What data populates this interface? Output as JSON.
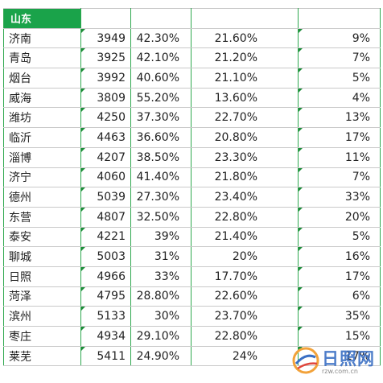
{
  "sheet": {
    "header": "山东",
    "rows": [
      {
        "city": "济南",
        "value": "3949",
        "pct1": "42.30%",
        "pct2": "21.60%",
        "pct3": "9%"
      },
      {
        "city": "青岛",
        "value": "3925",
        "pct1": "42.10%",
        "pct2": "21.20%",
        "pct3": "7%"
      },
      {
        "city": "烟台",
        "value": "3992",
        "pct1": "40.60%",
        "pct2": "21.10%",
        "pct3": "5%"
      },
      {
        "city": "威海",
        "value": "3809",
        "pct1": "55.20%",
        "pct2": "13.60%",
        "pct3": "4%"
      },
      {
        "city": "潍坊",
        "value": "4250",
        "pct1": "37.30%",
        "pct2": "22.70%",
        "pct3": "13%"
      },
      {
        "city": "临沂",
        "value": "4463",
        "pct1": "36.60%",
        "pct2": "20.80%",
        "pct3": "17%"
      },
      {
        "city": "淄博",
        "value": "4207",
        "pct1": "38.50%",
        "pct2": "23.30%",
        "pct3": "11%"
      },
      {
        "city": "济宁",
        "value": "4060",
        "pct1": "41.40%",
        "pct2": "21.80%",
        "pct3": "7%"
      },
      {
        "city": "德州",
        "value": "5039",
        "pct1": "27.30%",
        "pct2": "23.40%",
        "pct3": "33%"
      },
      {
        "city": "东营",
        "value": "4807",
        "pct1": "32.50%",
        "pct2": "22.80%",
        "pct3": "20%"
      },
      {
        "city": "泰安",
        "value": "4221",
        "pct1": "39%",
        "pct2": "21.40%",
        "pct3": "5%"
      },
      {
        "city": "聊城",
        "value": "5003",
        "pct1": "31%",
        "pct2": "20%",
        "pct3": "16%"
      },
      {
        "city": "日照",
        "value": "4966",
        "pct1": "33%",
        "pct2": "17.70%",
        "pct3": "17%"
      },
      {
        "city": "菏泽",
        "value": "4795",
        "pct1": "28.80%",
        "pct2": "22.60%",
        "pct3": "6%"
      },
      {
        "city": "滨州",
        "value": "5133",
        "pct1": "30%",
        "pct2": "23.70%",
        "pct3": "35%"
      },
      {
        "city": "枣庄",
        "value": "4934",
        "pct1": "29.10%",
        "pct2": "22.80%",
        "pct3": "15%"
      },
      {
        "city": "莱芜",
        "value": "5411",
        "pct1": "24.90%",
        "pct2": "24%",
        "pct3": "17%"
      }
    ]
  },
  "watermark": {
    "brand": "日照网",
    "url": "rzw.com.cn",
    "logo_icon": "globe-logo-icon",
    "color": "#3a6fc4"
  },
  "colors": {
    "header_bg": "#1aa34a",
    "gridline_green": "#2fa84f",
    "marker": "#1e8c3a"
  }
}
